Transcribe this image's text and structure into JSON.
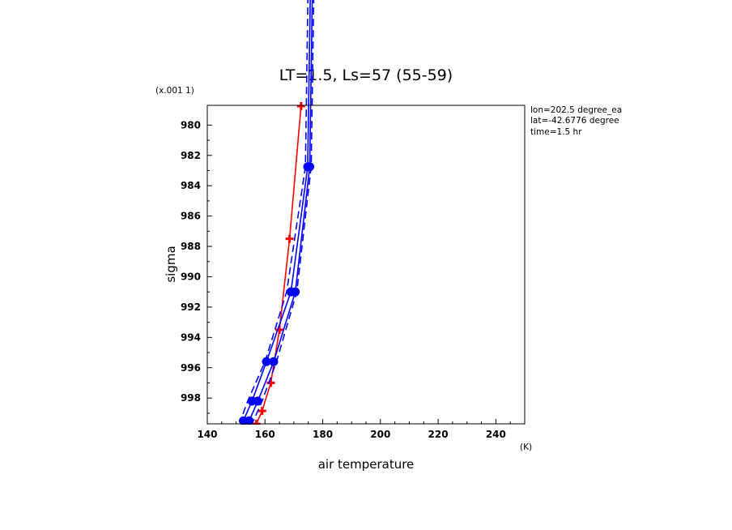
{
  "chart_data": {
    "type": "line",
    "title": "LT=1.5, Ls=57 (55-59)",
    "xlabel": "air temperature",
    "xunit": "(K)",
    "ylabel": "sigma",
    "yunit": "(x.001 1)",
    "xlim": [
      140,
      250
    ],
    "ylim": [
      999.7,
      978.7
    ],
    "y_inverted": true,
    "xticks": [
      "140",
      "160",
      "180",
      "200",
      "220",
      "240"
    ],
    "yticks": [
      "980",
      "982",
      "984",
      "986",
      "988",
      "990",
      "992",
      "994",
      "996",
      "998"
    ],
    "annotations": [
      "lon=202.5 degree_ea",
      "lat=-42.6776 degree",
      "time=1.5 hr"
    ],
    "series": [
      {
        "color": "#ff0000",
        "style": "solid",
        "marker": "plus",
        "points": [
          [
            172.5,
            978.75
          ],
          [
            168.5,
            987.5
          ],
          [
            165.0,
            993.5
          ],
          [
            162.0,
            997.0
          ],
          [
            159.0,
            998.85
          ],
          [
            157.0,
            999.7
          ]
        ]
      },
      {
        "color": "#0000ff",
        "style": "solid",
        "marker": "filled-circle",
        "points": [
          [
            176.5,
            970.0
          ],
          [
            175.5,
            982.75
          ],
          [
            170.5,
            991.0
          ],
          [
            163.0,
            995.6
          ],
          [
            157.5,
            998.2
          ],
          [
            154.5,
            999.5
          ]
        ]
      },
      {
        "color": "#0000ff",
        "style": "solid",
        "marker": "filled-circle",
        "points": [
          [
            175.8,
            970.0
          ],
          [
            174.8,
            982.75
          ],
          [
            169.0,
            991.0
          ],
          [
            160.5,
            995.6
          ],
          [
            155.5,
            998.2
          ],
          [
            152.5,
            999.5
          ]
        ]
      },
      {
        "color": "#0000ff",
        "style": "dashed",
        "marker": "none",
        "points": [
          [
            177.0,
            970.0
          ],
          [
            176.0,
            982.75
          ],
          [
            171.0,
            991.0
          ],
          [
            164.0,
            995.6
          ],
          [
            159.0,
            998.2
          ],
          [
            156.0,
            999.5
          ]
        ]
      },
      {
        "color": "#0000ff",
        "style": "dashed",
        "marker": "none",
        "points": [
          [
            175.0,
            970.0
          ],
          [
            174.0,
            982.75
          ],
          [
            167.5,
            991.0
          ],
          [
            160.0,
            995.6
          ],
          [
            154.0,
            998.2
          ],
          [
            151.5,
            999.5
          ]
        ]
      }
    ]
  }
}
